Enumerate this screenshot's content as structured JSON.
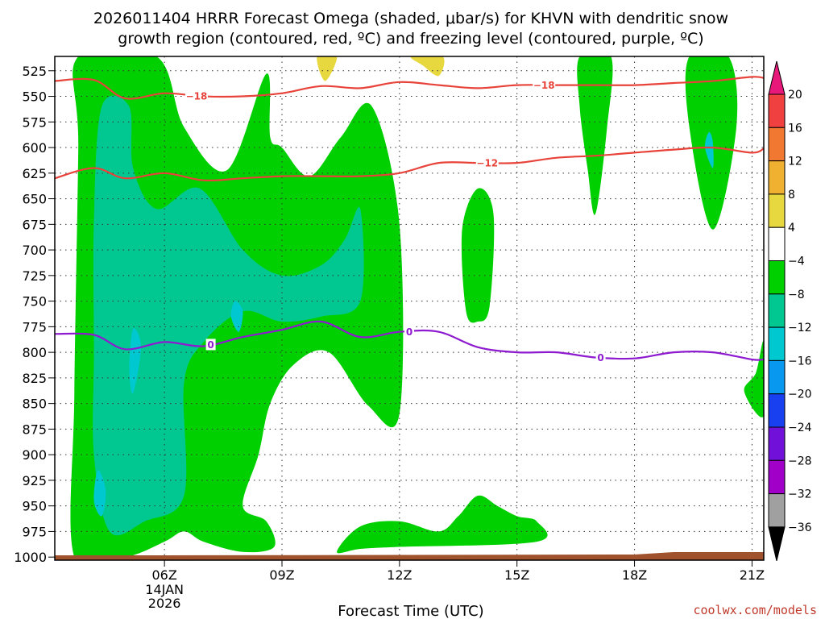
{
  "title_line1": "2026011404 HRRR Forecast Omega (shaded, μbar/s) for KHVN with dendritic snow",
  "title_line2": "growth region (contoured, red, ºC) and freezing level (contoured, purple, ºC)",
  "credit": "coolwx.com/models",
  "chart_data": {
    "type": "time-height contour",
    "xlabel": "Forecast Time (UTC)",
    "ylabel": "",
    "x_range_hours_utc": [
      3.2,
      21.3
    ],
    "y_range_hpa": [
      1003,
      511
    ],
    "y_ticks": [
      525,
      550,
      575,
      600,
      625,
      650,
      675,
      700,
      725,
      750,
      775,
      800,
      825,
      850,
      875,
      900,
      925,
      950,
      975,
      1000
    ],
    "x_ticks": [
      {
        "hour": 6,
        "label": "06Z"
      },
      {
        "hour": 9,
        "label": "09Z"
      },
      {
        "hour": 12,
        "label": "12Z"
      },
      {
        "hour": 15,
        "label": "15Z"
      },
      {
        "hour": 18,
        "label": "18Z"
      },
      {
        "hour": 21,
        "label": "21Z"
      }
    ],
    "date_label": [
      "14JAN",
      "2026"
    ],
    "grid": true,
    "colorbar": {
      "labels": [
        "20",
        "16",
        "12",
        "8",
        "4",
        "−4",
        "−8",
        "−12",
        "−16",
        "−20",
        "−24",
        "−28",
        "−32",
        "−36"
      ],
      "colors": [
        "#e8187a",
        "#f04040",
        "#f07830",
        "#f0b030",
        "#e8d840",
        "#ffffff",
        "#00d000",
        "#00c890",
        "#00c8d0",
        "#0898f0",
        "#1840f0",
        "#7010d8",
        "#a000c8",
        "#a0a0a0",
        "#000000"
      ]
    },
    "dgz_contours": [
      {
        "label": "−18",
        "color": "#e8433a",
        "points": [
          [
            3.2,
            535
          ],
          [
            4.2,
            534
          ],
          [
            5,
            552
          ],
          [
            6,
            547
          ],
          [
            7,
            550
          ],
          [
            8,
            550
          ],
          [
            9,
            547
          ],
          [
            10,
            540
          ],
          [
            11,
            542
          ],
          [
            12,
            536
          ],
          [
            13,
            539
          ],
          [
            14,
            542
          ],
          [
            15,
            539
          ],
          [
            16,
            539
          ],
          [
            17,
            539
          ],
          [
            18,
            539
          ],
          [
            19,
            537
          ],
          [
            20,
            535
          ],
          [
            21,
            531
          ],
          [
            21.3,
            532
          ]
        ]
      },
      {
        "label": "−12",
        "color": "#e8433a",
        "points": [
          [
            3.2,
            630
          ],
          [
            4.2,
            620
          ],
          [
            5,
            630
          ],
          [
            6,
            625
          ],
          [
            7,
            632
          ],
          [
            8,
            630
          ],
          [
            9,
            628
          ],
          [
            10,
            628
          ],
          [
            11,
            628
          ],
          [
            12,
            625
          ],
          [
            13,
            615
          ],
          [
            14,
            615
          ],
          [
            15,
            615
          ],
          [
            16,
            610
          ],
          [
            17,
            608
          ],
          [
            18,
            605
          ],
          [
            19,
            602
          ],
          [
            20,
            600
          ],
          [
            21,
            605
          ],
          [
            21.3,
            601
          ]
        ]
      }
    ],
    "freezing_level_contour": {
      "label": "0",
      "color": "#8e1ad0",
      "points": [
        [
          3.2,
          782
        ],
        [
          4.2,
          783
        ],
        [
          5,
          797
        ],
        [
          6,
          790
        ],
        [
          7,
          794
        ],
        [
          8,
          785
        ],
        [
          9,
          778
        ],
        [
          10,
          770
        ],
        [
          11,
          785
        ],
        [
          12,
          780
        ],
        [
          13,
          780
        ],
        [
          14,
          795
        ],
        [
          15,
          800
        ],
        [
          16,
          800
        ],
        [
          17,
          805
        ],
        [
          18,
          806
        ],
        [
          19,
          800
        ],
        [
          20,
          800
        ],
        [
          21,
          807
        ],
        [
          21.3,
          807
        ]
      ]
    },
    "omega_regions": [
      {
        "level": -8,
        "color": "#00d000",
        "points": [
          [
            3.7,
            1000
          ],
          [
            3.7,
            840
          ],
          [
            3.8,
            600
          ],
          [
            3.8,
            511
          ],
          [
            5.8,
            511
          ],
          [
            6.5,
            580
          ],
          [
            7.6,
            622
          ],
          [
            8.6,
            528
          ],
          [
            8.7,
            590
          ],
          [
            9,
            600
          ],
          [
            9.7,
            628
          ],
          [
            10.5,
            590
          ],
          [
            11.3,
            560
          ],
          [
            12,
            675
          ],
          [
            12,
            860
          ],
          [
            11.2,
            852
          ],
          [
            10.2,
            800
          ],
          [
            9.3,
            812
          ],
          [
            8.7,
            850
          ],
          [
            8.4,
            900
          ],
          [
            8,
            950
          ],
          [
            8.6,
            965
          ],
          [
            8.8,
            990
          ],
          [
            8,
            995
          ],
          [
            7,
            985
          ],
          [
            6.5,
            975
          ],
          [
            6,
            985
          ],
          [
            5,
            1000
          ]
        ]
      },
      {
        "level": -8,
        "color": "#00d000",
        "points": [
          [
            10.4,
            995
          ],
          [
            11,
            970
          ],
          [
            12,
            965
          ],
          [
            13,
            975
          ],
          [
            13.5,
            960
          ],
          [
            14,
            940
          ],
          [
            14.5,
            950
          ],
          [
            15,
            960
          ],
          [
            15.5,
            965
          ],
          [
            15.5,
            985
          ],
          [
            12,
            990
          ],
          [
            11,
            992
          ]
        ]
      },
      {
        "level": -8,
        "color": "#00d000",
        "points": [
          [
            14,
            640
          ],
          [
            14.4,
            665
          ],
          [
            14.3,
            755
          ],
          [
            14,
            770
          ],
          [
            13.7,
            760
          ],
          [
            13.6,
            680
          ]
        ]
      },
      {
        "level": -8,
        "color": "#00d000",
        "points": [
          [
            16.6,
            511
          ],
          [
            17.4,
            511
          ],
          [
            17.3,
            580
          ],
          [
            17,
            665
          ],
          [
            16.8,
            620
          ],
          [
            16.6,
            560
          ]
        ]
      },
      {
        "level": -8,
        "color": "#00d000",
        "points": [
          [
            19.4,
            511
          ],
          [
            20.4,
            511
          ],
          [
            20.6,
            580
          ],
          [
            20,
            680
          ],
          [
            19.4,
            580
          ]
        ]
      },
      {
        "level": -8,
        "color": "#00d000",
        "points": [
          [
            21.3,
            790
          ],
          [
            21.1,
            820
          ],
          [
            20.8,
            838
          ],
          [
            21.3,
            862
          ]
        ]
      },
      {
        "level": -12,
        "color": "#00c890",
        "points": [
          [
            4.2,
            670
          ],
          [
            4.4,
            560
          ],
          [
            5.1,
            560
          ],
          [
            5.2,
            620
          ],
          [
            5.8,
            660
          ],
          [
            6.9,
            640
          ],
          [
            8,
            700
          ],
          [
            9,
            725
          ],
          [
            10,
            715
          ],
          [
            10.6,
            690
          ],
          [
            11,
            660
          ],
          [
            11,
            750
          ],
          [
            10,
            765
          ],
          [
            9,
            770
          ],
          [
            8,
            760
          ],
          [
            7,
            790
          ],
          [
            6.5,
            830
          ],
          [
            6.5,
            940
          ],
          [
            5.5,
            965
          ],
          [
            4.6,
            975
          ],
          [
            4.2,
            900
          ],
          [
            4.2,
            800
          ]
        ]
      },
      {
        "level": -16,
        "color": "#00c8d0",
        "points": [
          [
            5.2,
            777
          ],
          [
            5.4,
            795
          ],
          [
            5.2,
            840
          ],
          [
            5.1,
            815
          ]
        ]
      },
      {
        "level": -16,
        "color": "#00c8d0",
        "points": [
          [
            7.8,
            750
          ],
          [
            8,
            760
          ],
          [
            7.9,
            780
          ],
          [
            7.7,
            765
          ]
        ]
      },
      {
        "level": -16,
        "color": "#00c8d0",
        "points": [
          [
            4.3,
            915
          ],
          [
            4.5,
            935
          ],
          [
            4.4,
            960
          ],
          [
            4.2,
            945
          ]
        ]
      },
      {
        "level": -16,
        "color": "#00c8d0",
        "points": [
          [
            19.9,
            585
          ],
          [
            20,
            595
          ],
          [
            20,
            620
          ],
          [
            19.8,
            600
          ]
        ]
      },
      {
        "level": 8,
        "color": "#e8d840",
        "points": [
          [
            9.9,
            511
          ],
          [
            10.4,
            511
          ],
          [
            10.1,
            535
          ]
        ]
      },
      {
        "level": 8,
        "color": "#e8d840",
        "points": [
          [
            12.3,
            511
          ],
          [
            13.1,
            511
          ],
          [
            13,
            530
          ],
          [
            12.6,
            520
          ]
        ]
      }
    ],
    "terrain_color": "#a0522d"
  }
}
